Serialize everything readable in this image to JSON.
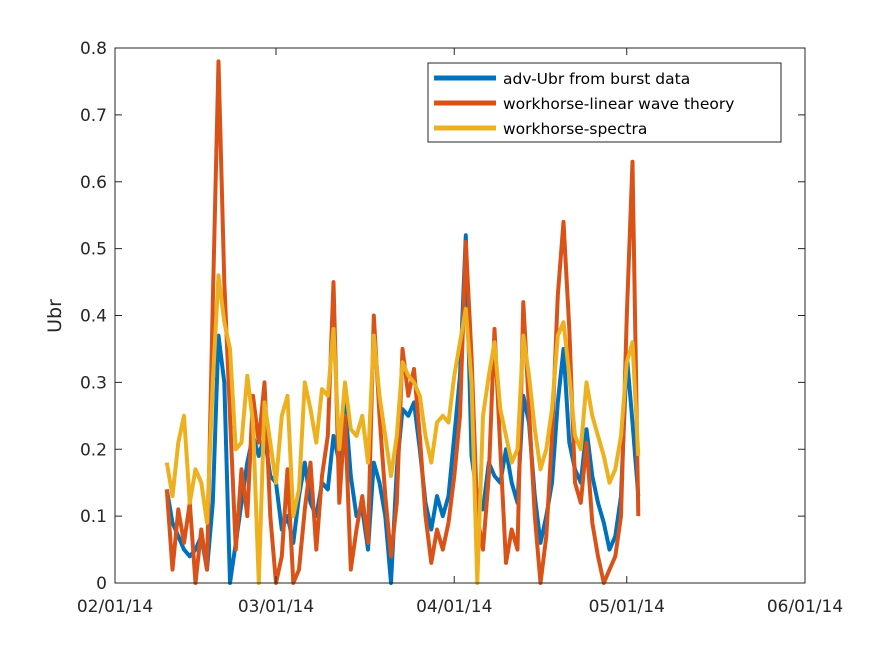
{
  "chart_data": {
    "type": "line",
    "title": "",
    "xlabel": "",
    "ylabel": "Ubr",
    "x_ticks": [
      "02/01/14",
      "03/01/14",
      "04/01/14",
      "05/01/14",
      "06/01/14"
    ],
    "x_tick_dates": [
      "2014-02-01",
      "2014-03-01",
      "2014-04-01",
      "2014-05-01",
      "2014-06-01"
    ],
    "xlim": [
      "2014-02-01",
      "2014-06-01"
    ],
    "ylim": [
      0,
      0.8
    ],
    "y_ticks": [
      "0",
      "0.1",
      "0.2",
      "0.3",
      "0.4",
      "0.5",
      "0.6",
      "0.7",
      "0.8"
    ],
    "grid": false,
    "legend_position": "top-right",
    "series": [
      {
        "name": "adv-Ubr from burst data",
        "color": "#0072BD",
        "x": [
          "2014-02-10",
          "2014-02-11",
          "2014-02-12",
          "2014-02-13",
          "2014-02-14",
          "2014-02-15",
          "2014-02-16",
          "2014-02-17",
          "2014-02-18",
          "2014-02-19",
          "2014-02-20",
          "2014-02-21",
          "2014-02-22",
          "2014-02-23",
          "2014-02-24",
          "2014-02-25",
          "2014-02-26",
          "2014-02-27",
          "2014-02-28",
          "2014-03-01",
          "2014-03-02",
          "2014-03-03",
          "2014-03-04",
          "2014-03-05",
          "2014-03-06",
          "2014-03-07",
          "2014-03-08",
          "2014-03-09",
          "2014-03-10",
          "2014-03-11",
          "2014-03-12",
          "2014-03-13",
          "2014-03-14",
          "2014-03-15",
          "2014-03-16",
          "2014-03-17",
          "2014-03-18",
          "2014-03-19",
          "2014-03-20",
          "2014-03-21",
          "2014-03-22",
          "2014-03-23",
          "2014-03-24",
          "2014-03-25",
          "2014-03-26",
          "2014-03-27",
          "2014-03-28",
          "2014-03-29",
          "2014-03-30",
          "2014-03-31",
          "2014-04-01",
          "2014-04-02",
          "2014-04-03",
          "2014-04-04",
          "2014-04-05",
          "2014-04-06",
          "2014-04-07",
          "2014-04-08",
          "2014-04-09",
          "2014-04-10",
          "2014-04-11",
          "2014-04-12",
          "2014-04-13",
          "2014-04-14",
          "2014-04-15",
          "2014-04-16",
          "2014-04-17",
          "2014-04-18",
          "2014-04-19",
          "2014-04-20",
          "2014-04-21",
          "2014-04-22",
          "2014-04-23",
          "2014-04-24",
          "2014-04-25",
          "2014-04-26",
          "2014-04-27",
          "2014-04-28",
          "2014-04-29",
          "2014-04-30",
          "2014-05-01",
          "2014-05-02",
          "2014-05-03"
        ],
        "y": [
          0.14,
          0.09,
          0.07,
          0.05,
          0.04,
          0.05,
          0.07,
          0.02,
          0.12,
          0.37,
          0.3,
          0.0,
          0.06,
          0.12,
          0.18,
          0.22,
          0.19,
          0.22,
          0.16,
          0.15,
          0.08,
          0.1,
          0.06,
          0.13,
          0.18,
          0.12,
          0.1,
          0.15,
          0.14,
          0.22,
          0.18,
          0.27,
          0.16,
          0.1,
          0.11,
          0.05,
          0.18,
          0.15,
          0.1,
          0.0,
          0.17,
          0.26,
          0.25,
          0.27,
          0.2,
          0.12,
          0.08,
          0.13,
          0.1,
          0.13,
          0.22,
          0.31,
          0.52,
          0.19,
          0.13,
          0.11,
          0.18,
          0.16,
          0.15,
          0.2,
          0.15,
          0.12,
          0.28,
          0.24,
          0.13,
          0.06,
          0.1,
          0.15,
          0.27,
          0.35,
          0.21,
          0.17,
          0.15,
          0.23,
          0.16,
          0.12,
          0.09,
          0.05,
          0.07,
          0.13,
          0.34,
          0.24,
          0.13
        ]
      },
      {
        "name": "workhorse-linear wave theory",
        "color": "#D95319",
        "x": [
          "2014-02-10",
          "2014-02-11",
          "2014-02-12",
          "2014-02-13",
          "2014-02-14",
          "2014-02-15",
          "2014-02-16",
          "2014-02-17",
          "2014-02-18",
          "2014-02-19",
          "2014-02-20",
          "2014-02-21",
          "2014-02-22",
          "2014-02-23",
          "2014-02-24",
          "2014-02-25",
          "2014-02-26",
          "2014-02-27",
          "2014-02-28",
          "2014-03-01",
          "2014-03-02",
          "2014-03-03",
          "2014-03-04",
          "2014-03-05",
          "2014-03-06",
          "2014-03-07",
          "2014-03-08",
          "2014-03-09",
          "2014-03-10",
          "2014-03-11",
          "2014-03-12",
          "2014-03-13",
          "2014-03-14",
          "2014-03-15",
          "2014-03-16",
          "2014-03-17",
          "2014-03-18",
          "2014-03-19",
          "2014-03-20",
          "2014-03-21",
          "2014-03-22",
          "2014-03-23",
          "2014-03-24",
          "2014-03-25",
          "2014-03-26",
          "2014-03-27",
          "2014-03-28",
          "2014-03-29",
          "2014-03-30",
          "2014-03-31",
          "2014-04-01",
          "2014-04-02",
          "2014-04-03",
          "2014-04-04",
          "2014-04-05",
          "2014-04-06",
          "2014-04-07",
          "2014-04-08",
          "2014-04-09",
          "2014-04-10",
          "2014-04-11",
          "2014-04-12",
          "2014-04-13",
          "2014-04-14",
          "2014-04-15",
          "2014-04-16",
          "2014-04-17",
          "2014-04-18",
          "2014-04-19",
          "2014-04-20",
          "2014-04-21",
          "2014-04-22",
          "2014-04-23",
          "2014-04-24",
          "2014-04-25",
          "2014-04-26",
          "2014-04-27",
          "2014-04-28",
          "2014-04-29",
          "2014-04-30",
          "2014-05-01",
          "2014-05-02",
          "2014-05-03"
        ],
        "y": [
          0.14,
          0.02,
          0.11,
          0.06,
          0.12,
          0.0,
          0.08,
          0.02,
          0.42,
          0.78,
          0.45,
          0.25,
          0.05,
          0.17,
          0.1,
          0.28,
          0.21,
          0.3,
          0.1,
          0.0,
          0.04,
          0.17,
          0.0,
          0.02,
          0.11,
          0.18,
          0.05,
          0.16,
          0.22,
          0.45,
          0.12,
          0.25,
          0.02,
          0.08,
          0.13,
          0.06,
          0.4,
          0.25,
          0.13,
          0.04,
          0.12,
          0.35,
          0.28,
          0.32,
          0.22,
          0.1,
          0.03,
          0.08,
          0.05,
          0.09,
          0.16,
          0.25,
          0.51,
          0.34,
          0.1,
          0.05,
          0.16,
          0.38,
          0.2,
          0.03,
          0.08,
          0.05,
          0.42,
          0.26,
          0.1,
          0.0,
          0.07,
          0.22,
          0.43,
          0.54,
          0.38,
          0.15,
          0.12,
          0.21,
          0.09,
          0.04,
          0.0,
          0.02,
          0.04,
          0.1,
          0.4,
          0.63,
          0.1
        ]
      },
      {
        "name": "workhorse-spectra",
        "color": "#EDB120",
        "x": [
          "2014-02-10",
          "2014-02-11",
          "2014-02-12",
          "2014-02-13",
          "2014-02-14",
          "2014-02-15",
          "2014-02-16",
          "2014-02-17",
          "2014-02-18",
          "2014-02-19",
          "2014-02-20",
          "2014-02-21",
          "2014-02-22",
          "2014-02-23",
          "2014-02-24",
          "2014-02-25",
          "2014-02-26",
          "2014-02-27",
          "2014-02-28",
          "2014-03-01",
          "2014-03-02",
          "2014-03-03",
          "2014-03-04",
          "2014-03-05",
          "2014-03-06",
          "2014-03-07",
          "2014-03-08",
          "2014-03-09",
          "2014-03-10",
          "2014-03-11",
          "2014-03-12",
          "2014-03-13",
          "2014-03-14",
          "2014-03-15",
          "2014-03-16",
          "2014-03-17",
          "2014-03-18",
          "2014-03-19",
          "2014-03-20",
          "2014-03-21",
          "2014-03-22",
          "2014-03-23",
          "2014-03-24",
          "2014-03-25",
          "2014-03-26",
          "2014-03-27",
          "2014-03-28",
          "2014-03-29",
          "2014-03-30",
          "2014-03-31",
          "2014-04-01",
          "2014-04-02",
          "2014-04-03",
          "2014-04-04",
          "2014-04-05",
          "2014-04-06",
          "2014-04-07",
          "2014-04-08",
          "2014-04-09",
          "2014-04-10",
          "2014-04-11",
          "2014-04-12",
          "2014-04-13",
          "2014-04-14",
          "2014-04-15",
          "2014-04-16",
          "2014-04-17",
          "2014-04-18",
          "2014-04-19",
          "2014-04-20",
          "2014-04-21",
          "2014-04-22",
          "2014-04-23",
          "2014-04-24",
          "2014-04-25",
          "2014-04-26",
          "2014-04-27",
          "2014-04-28",
          "2014-04-29",
          "2014-04-30",
          "2014-05-01",
          "2014-05-02",
          "2014-05-03"
        ],
        "y": [
          0.18,
          0.13,
          0.21,
          0.25,
          0.12,
          0.17,
          0.15,
          0.09,
          0.3,
          0.46,
          0.39,
          0.35,
          0.2,
          0.21,
          0.31,
          0.24,
          0.0,
          0.27,
          0.21,
          0.15,
          0.25,
          0.28,
          0.1,
          0.14,
          0.3,
          0.26,
          0.21,
          0.29,
          0.28,
          0.38,
          0.2,
          0.3,
          0.23,
          0.22,
          0.25,
          0.18,
          0.37,
          0.28,
          0.22,
          0.16,
          0.22,
          0.33,
          0.31,
          0.3,
          0.28,
          0.22,
          0.18,
          0.24,
          0.25,
          0.24,
          0.31,
          0.36,
          0.41,
          0.3,
          0.0,
          0.25,
          0.31,
          0.36,
          0.26,
          0.22,
          0.18,
          0.2,
          0.37,
          0.31,
          0.23,
          0.17,
          0.2,
          0.26,
          0.37,
          0.39,
          0.31,
          0.22,
          0.2,
          0.3,
          0.25,
          0.22,
          0.19,
          0.15,
          0.17,
          0.22,
          0.33,
          0.36,
          0.19
        ]
      }
    ]
  }
}
